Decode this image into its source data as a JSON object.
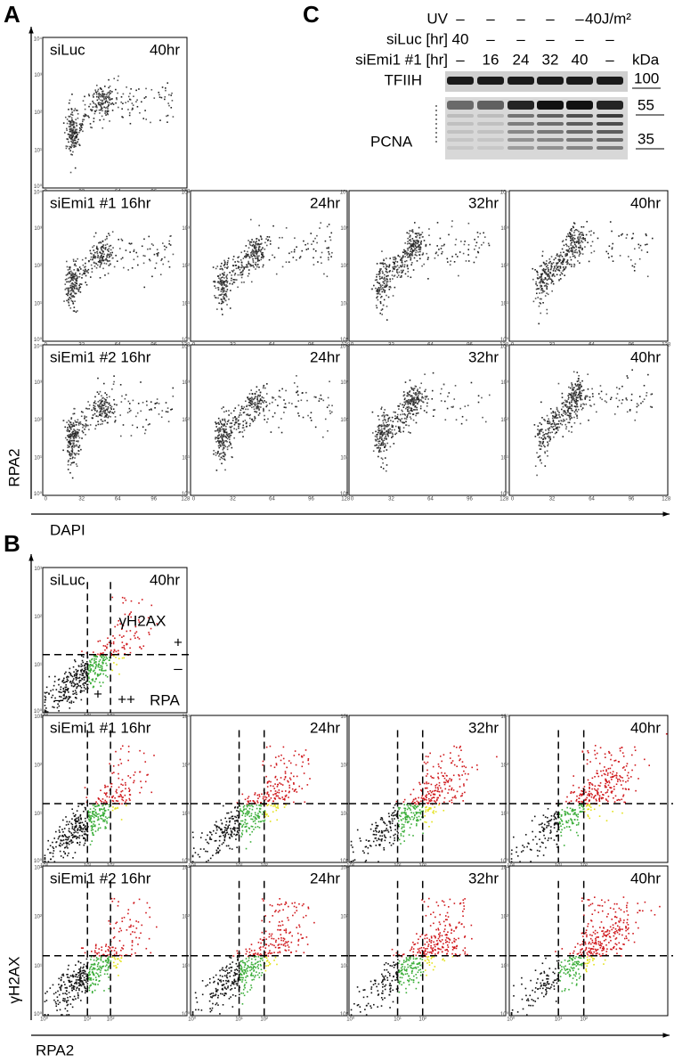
{
  "panel_a": {
    "letter": "A",
    "x_axis_label": "DAPI",
    "y_axis_label": "RPA2",
    "x_tick_labels": [
      "0",
      "32",
      "64",
      "96",
      "128"
    ],
    "y_tick_labels": [
      "10⁰",
      "10¹",
      "10²",
      "10³",
      "10⁴"
    ],
    "plots": [
      {
        "label_left": "siLuc",
        "label_right": "40hr"
      },
      {
        "label_left": "siEmi1 #1 16hr"
      },
      {
        "label_right": "24hr"
      },
      {
        "label_right": "32hr"
      },
      {
        "label_right": "40hr"
      },
      {
        "label_left": "siEmi1 #2 16hr"
      },
      {
        "label_right": "24hr"
      },
      {
        "label_right": "32hr"
      },
      {
        "label_right": "40hr"
      }
    ]
  },
  "panel_b": {
    "letter": "B",
    "x_axis_label": "RPA2",
    "y_axis_label": "γH2AX",
    "x_tick_labels": [
      "10⁰",
      "10¹",
      "10²"
    ],
    "y_tick_labels": [
      "10⁰",
      "10¹",
      "10²",
      "10³"
    ],
    "annotations": [
      "γH2AX",
      "+",
      "–",
      "–",
      "+",
      "++",
      "RPA"
    ],
    "plots": [
      {
        "label_left": "siLuc",
        "label_right": "40hr"
      },
      {
        "label_left": "siEmi1 #1 16hr"
      },
      {
        "label_right": "24hr"
      },
      {
        "label_right": "32hr"
      },
      {
        "label_right": "40hr"
      },
      {
        "label_left": "siEmi1 #2 16hr"
      },
      {
        "label_right": "24hr"
      },
      {
        "label_right": "32hr"
      },
      {
        "label_right": "40hr"
      }
    ]
  },
  "panel_c": {
    "letter": "C",
    "row_labels": [
      "UV",
      "siLuc [hr]",
      "siEmi1 #1 [hr]"
    ],
    "rows": [
      [
        "–",
        "–",
        "–",
        "–",
        "–",
        "40J/m²"
      ],
      [
        "40",
        "–",
        "–",
        "–",
        "–",
        "–"
      ],
      [
        "–",
        "16",
        "24",
        "32",
        "40",
        "–"
      ]
    ],
    "kda_label": "kDa",
    "bands": [
      "TFIIH",
      "PCNA"
    ],
    "markers": [
      "100",
      "55",
      "35"
    ]
  }
}
